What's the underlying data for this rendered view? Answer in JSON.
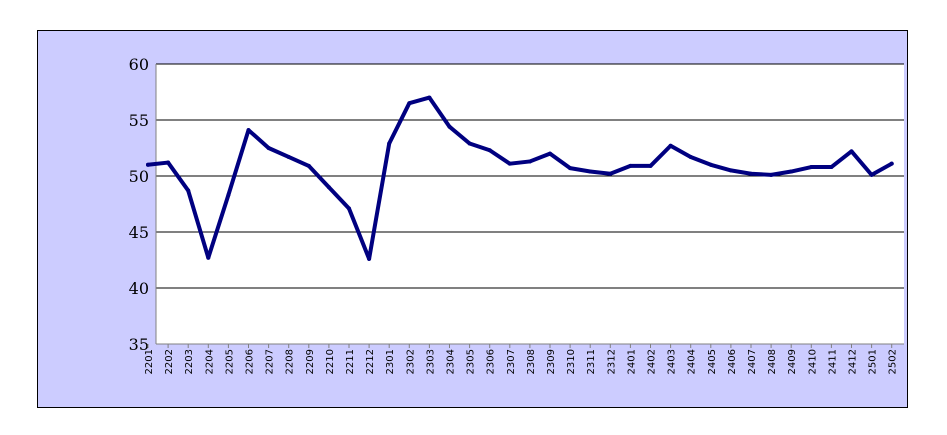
{
  "chart_data": {
    "type": "line",
    "title": "",
    "xlabel": "",
    "ylabel": "",
    "ylim": [
      35,
      60
    ],
    "yticks": [
      35,
      40,
      45,
      50,
      55,
      60
    ],
    "grid": "horizontal",
    "colors": {
      "line": "#000080",
      "plot_background": "#ffffff",
      "frame_background": "#ccccff",
      "gridline": "#000000"
    },
    "categories": [
      "2201",
      "2202",
      "2203",
      "2204",
      "2205",
      "2206",
      "2207",
      "2208",
      "2209",
      "2210",
      "2211",
      "2212",
      "2301",
      "2302",
      "2303",
      "2304",
      "2305",
      "2306",
      "2307",
      "2308",
      "2309",
      "2310",
      "2311",
      "2312",
      "2401",
      "2402",
      "2403",
      "2404",
      "2405",
      "2406",
      "2407",
      "2408",
      "2409",
      "2410",
      "2411",
      "2412",
      "2501",
      "2502"
    ],
    "series": [
      {
        "values": [
          51.0,
          51.2,
          48.7,
          42.7,
          48.3,
          54.1,
          52.5,
          51.7,
          50.9,
          49.0,
          47.1,
          42.6,
          52.9,
          56.5,
          57.0,
          54.4,
          52.9,
          52.3,
          51.1,
          51.3,
          52.0,
          50.7,
          50.4,
          50.2,
          50.9,
          50.9,
          52.7,
          51.7,
          51.0,
          50.5,
          50.2,
          50.1,
          50.4,
          50.8,
          50.8,
          52.2,
          50.1,
          51.1
        ]
      }
    ]
  }
}
